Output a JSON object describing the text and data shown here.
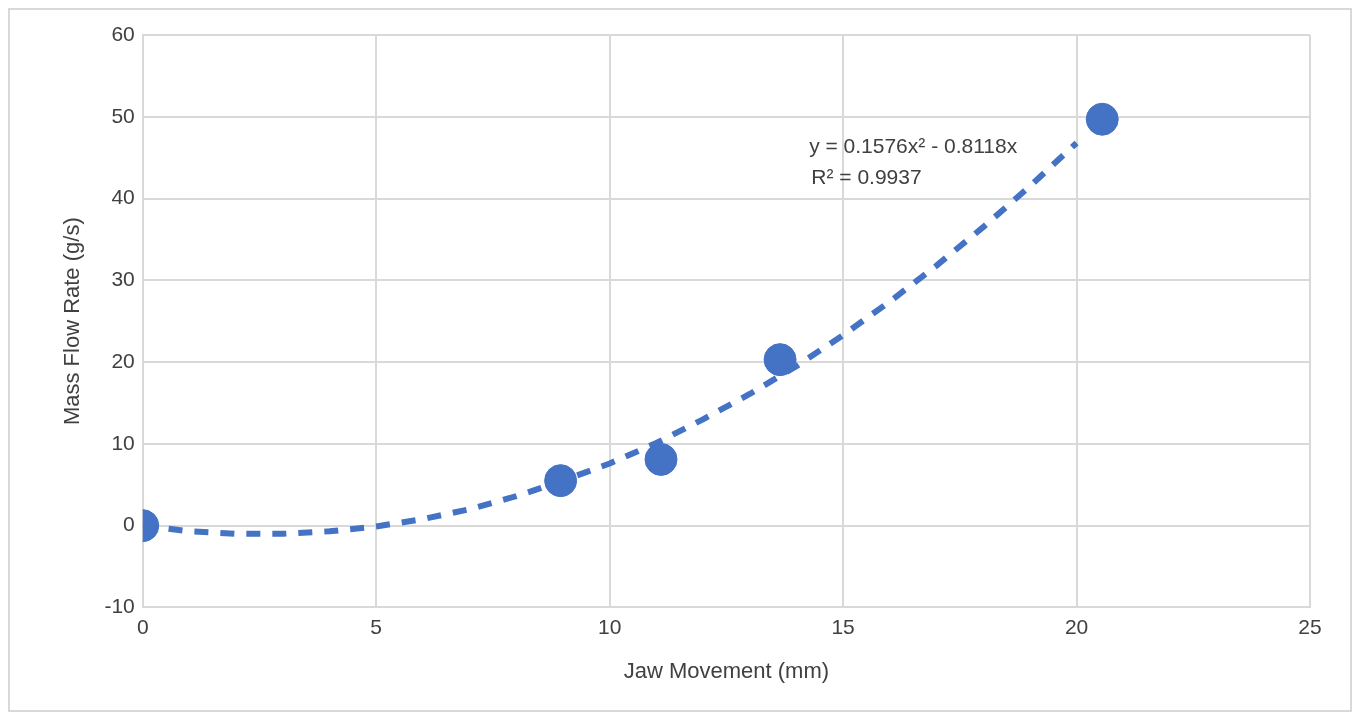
{
  "chart_data": {
    "type": "scatter",
    "xlabel": "Jaw Movement (mm)",
    "ylabel": "Mass Flow Rate (g/s)",
    "xlim": [
      0,
      25
    ],
    "xticks": [
      0,
      5,
      10,
      15,
      20,
      25
    ],
    "ylim": [
      -10,
      60
    ],
    "yticks": [
      -10,
      0,
      10,
      20,
      30,
      40,
      50,
      60
    ],
    "grid": true,
    "legend": false,
    "annotations": [
      "y = 0.1576x² - 0.8118x",
      "R² = 0.9937"
    ],
    "series": [
      {
        "type": "scatter",
        "color": "#4472c4",
        "marker": "circle",
        "x": [
          0,
          8.95,
          11.1,
          13.65,
          20.55
        ],
        "values": [
          0,
          5.5,
          8.1,
          20.3,
          49.7
        ]
      },
      {
        "type": "line",
        "color": "#4472c4",
        "marker": "none",
        "line_style": "dashed",
        "x": [
          0,
          1,
          2,
          3,
          4,
          5,
          6,
          7,
          8,
          9,
          10,
          11,
          12,
          13,
          14,
          15,
          16,
          17,
          18,
          19,
          20
        ],
        "values": [
          0,
          -0.7,
          -1,
          -1,
          -0.7,
          -0.1,
          0.8,
          2,
          3.6,
          5.5,
          7.6,
          10.1,
          13,
          16.1,
          19.5,
          23.3,
          27.4,
          31.8,
          36.5,
          41.5,
          46.8
        ]
      }
    ]
  }
}
